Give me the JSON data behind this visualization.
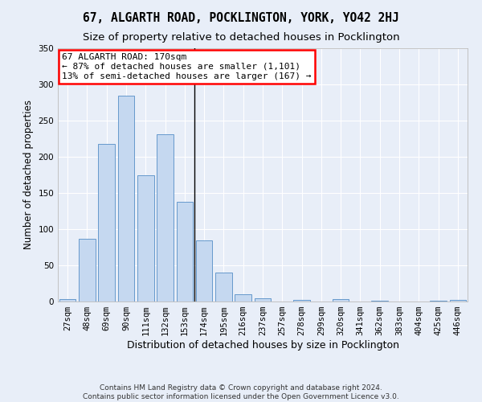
{
  "title": "67, ALGARTH ROAD, POCKLINGTON, YORK, YO42 2HJ",
  "subtitle": "Size of property relative to detached houses in Pocklington",
  "xlabel": "Distribution of detached houses by size in Pocklington",
  "ylabel": "Number of detached properties",
  "bar_labels": [
    "27sqm",
    "48sqm",
    "69sqm",
    "90sqm",
    "111sqm",
    "132sqm",
    "153sqm",
    "174sqm",
    "195sqm",
    "216sqm",
    "237sqm",
    "257sqm",
    "278sqm",
    "299sqm",
    "320sqm",
    "341sqm",
    "362sqm",
    "383sqm",
    "404sqm",
    "425sqm",
    "446sqm"
  ],
  "bar_values": [
    3,
    87,
    218,
    284,
    175,
    231,
    138,
    85,
    40,
    10,
    5,
    0,
    2,
    0,
    3,
    0,
    1,
    0,
    0,
    1,
    2
  ],
  "bar_color": "#c5d8f0",
  "bar_edge_color": "#6699cc",
  "vline_index": 6.5,
  "ylim": [
    0,
    350
  ],
  "yticks": [
    0,
    50,
    100,
    150,
    200,
    250,
    300,
    350
  ],
  "annotation_title": "67 ALGARTH ROAD: 170sqm",
  "annotation_line1": "← 87% of detached houses are smaller (1,101)",
  "annotation_line2": "13% of semi-detached houses are larger (167) →",
  "footnote1": "Contains HM Land Registry data © Crown copyright and database right 2024.",
  "footnote2": "Contains public sector information licensed under the Open Government Licence v3.0.",
  "bg_color": "#e8eef8",
  "grid_color": "#ffffff",
  "title_fontsize": 10.5,
  "subtitle_fontsize": 9.5,
  "xlabel_fontsize": 9,
  "ylabel_fontsize": 8.5,
  "tick_fontsize": 7.5,
  "footnote_fontsize": 6.5,
  "ann_fontsize": 8
}
